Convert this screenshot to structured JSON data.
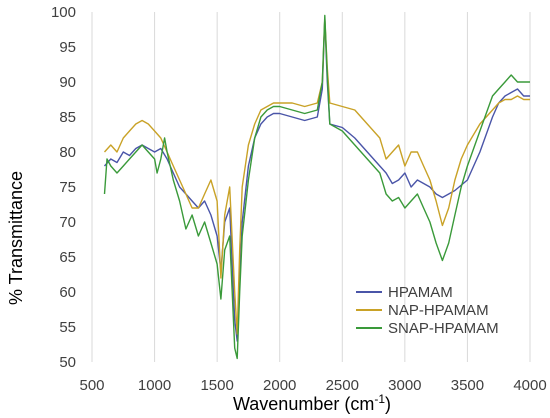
{
  "chart_data": {
    "type": "line",
    "xlabel": "Wavenumber (cm",
    "xlabel_sup": "-1",
    "xlabel_end": ")",
    "ylabel": "% Transmittance",
    "xlim": [
      500,
      4000
    ],
    "ylim": [
      50,
      100
    ],
    "x_ticks": [
      "500",
      "1000",
      "1500",
      "2000",
      "2500",
      "3000",
      "3500",
      "4000"
    ],
    "y_ticks": [
      "50",
      "55",
      "60",
      "65",
      "70",
      "75",
      "80",
      "85",
      "90",
      "95",
      "100"
    ],
    "grid": "vertical",
    "legend_position": "bottom-right",
    "series": [
      {
        "name": "HPAMAM",
        "color": "#4a55a8",
        "points": [
          [
            600,
            78
          ],
          [
            650,
            79
          ],
          [
            700,
            78.5
          ],
          [
            750,
            80
          ],
          [
            800,
            79.5
          ],
          [
            850,
            80.5
          ],
          [
            900,
            81
          ],
          [
            950,
            80.5
          ],
          [
            1000,
            80
          ],
          [
            1050,
            80.5
          ],
          [
            1100,
            79
          ],
          [
            1150,
            77
          ],
          [
            1200,
            75
          ],
          [
            1250,
            74
          ],
          [
            1300,
            73
          ],
          [
            1350,
            72
          ],
          [
            1400,
            73
          ],
          [
            1450,
            71
          ],
          [
            1500,
            68
          ],
          [
            1530,
            63
          ],
          [
            1560,
            70
          ],
          [
            1600,
            72
          ],
          [
            1640,
            56
          ],
          [
            1660,
            53
          ],
          [
            1680,
            62
          ],
          [
            1700,
            70
          ],
          [
            1750,
            78
          ],
          [
            1800,
            82
          ],
          [
            1850,
            84
          ],
          [
            1900,
            85
          ],
          [
            1950,
            85.5
          ],
          [
            2000,
            85.5
          ],
          [
            2100,
            85
          ],
          [
            2200,
            84.5
          ],
          [
            2300,
            85
          ],
          [
            2340,
            89
          ],
          [
            2360,
            99
          ],
          [
            2380,
            90
          ],
          [
            2400,
            84
          ],
          [
            2500,
            83.5
          ],
          [
            2600,
            82
          ],
          [
            2700,
            80
          ],
          [
            2800,
            78
          ],
          [
            2850,
            77
          ],
          [
            2900,
            75.5
          ],
          [
            2950,
            76
          ],
          [
            3000,
            77
          ],
          [
            3050,
            75
          ],
          [
            3100,
            76
          ],
          [
            3200,
            75
          ],
          [
            3250,
            74
          ],
          [
            3300,
            73.5
          ],
          [
            3350,
            74
          ],
          [
            3400,
            74.5
          ],
          [
            3500,
            76
          ],
          [
            3600,
            80
          ],
          [
            3700,
            85
          ],
          [
            3750,
            87
          ],
          [
            3800,
            88
          ],
          [
            3850,
            88.5
          ],
          [
            3900,
            89
          ],
          [
            3950,
            88
          ],
          [
            4000,
            88
          ]
        ]
      },
      {
        "name": "NAP-HPAMAM",
        "color": "#c9a227",
        "points": [
          [
            600,
            80
          ],
          [
            650,
            81
          ],
          [
            700,
            80
          ],
          [
            750,
            82
          ],
          [
            800,
            83
          ],
          [
            850,
            84
          ],
          [
            900,
            84.5
          ],
          [
            950,
            84
          ],
          [
            1000,
            83
          ],
          [
            1050,
            82
          ],
          [
            1100,
            80
          ],
          [
            1150,
            78
          ],
          [
            1200,
            76
          ],
          [
            1250,
            74
          ],
          [
            1300,
            72
          ],
          [
            1350,
            72
          ],
          [
            1400,
            74
          ],
          [
            1450,
            76
          ],
          [
            1500,
            73
          ],
          [
            1530,
            62
          ],
          [
            1560,
            71
          ],
          [
            1600,
            75
          ],
          [
            1640,
            60
          ],
          [
            1660,
            54
          ],
          [
            1680,
            66
          ],
          [
            1700,
            75
          ],
          [
            1750,
            81
          ],
          [
            1800,
            84
          ],
          [
            1850,
            86
          ],
          [
            1900,
            86.5
          ],
          [
            1950,
            87
          ],
          [
            2000,
            87
          ],
          [
            2100,
            87
          ],
          [
            2200,
            86.5
          ],
          [
            2300,
            87
          ],
          [
            2340,
            90
          ],
          [
            2360,
            99
          ],
          [
            2380,
            92
          ],
          [
            2400,
            87
          ],
          [
            2500,
            86.5
          ],
          [
            2600,
            86
          ],
          [
            2700,
            84
          ],
          [
            2800,
            82
          ],
          [
            2850,
            79
          ],
          [
            2900,
            80
          ],
          [
            2950,
            81
          ],
          [
            3000,
            78
          ],
          [
            3050,
            80
          ],
          [
            3100,
            80
          ],
          [
            3150,
            78
          ],
          [
            3200,
            76
          ],
          [
            3250,
            73
          ],
          [
            3300,
            69.5
          ],
          [
            3350,
            72
          ],
          [
            3400,
            76
          ],
          [
            3450,
            79
          ],
          [
            3500,
            81
          ],
          [
            3600,
            84
          ],
          [
            3700,
            86
          ],
          [
            3750,
            87
          ],
          [
            3800,
            87.5
          ],
          [
            3850,
            87.5
          ],
          [
            3900,
            88
          ],
          [
            3950,
            87.5
          ],
          [
            4000,
            87.5
          ]
        ]
      },
      {
        "name": "SNAP-HPAMAM",
        "color": "#3a9a3a",
        "points": [
          [
            600,
            74
          ],
          [
            620,
            79
          ],
          [
            650,
            78
          ],
          [
            700,
            77
          ],
          [
            750,
            78
          ],
          [
            800,
            79
          ],
          [
            850,
            80
          ],
          [
            900,
            81
          ],
          [
            950,
            80
          ],
          [
            1000,
            79
          ],
          [
            1020,
            77
          ],
          [
            1050,
            79
          ],
          [
            1080,
            82
          ],
          [
            1100,
            80
          ],
          [
            1150,
            76
          ],
          [
            1200,
            73
          ],
          [
            1250,
            69
          ],
          [
            1300,
            71
          ],
          [
            1350,
            68
          ],
          [
            1400,
            70
          ],
          [
            1450,
            67
          ],
          [
            1500,
            64
          ],
          [
            1530,
            59
          ],
          [
            1560,
            66
          ],
          [
            1600,
            68
          ],
          [
            1640,
            52
          ],
          [
            1660,
            50.5
          ],
          [
            1680,
            60
          ],
          [
            1700,
            68
          ],
          [
            1750,
            76
          ],
          [
            1800,
            82
          ],
          [
            1850,
            85
          ],
          [
            1900,
            86
          ],
          [
            1950,
            86.5
          ],
          [
            2000,
            86.5
          ],
          [
            2100,
            86
          ],
          [
            2200,
            85.5
          ],
          [
            2300,
            86
          ],
          [
            2340,
            90
          ],
          [
            2360,
            99.5
          ],
          [
            2380,
            91
          ],
          [
            2400,
            84
          ],
          [
            2500,
            83
          ],
          [
            2600,
            81
          ],
          [
            2700,
            79
          ],
          [
            2800,
            77
          ],
          [
            2850,
            74
          ],
          [
            2900,
            73
          ],
          [
            2950,
            73.5
          ],
          [
            3000,
            72
          ],
          [
            3050,
            73
          ],
          [
            3100,
            74
          ],
          [
            3150,
            72
          ],
          [
            3200,
            70
          ],
          [
            3250,
            67
          ],
          [
            3300,
            64.5
          ],
          [
            3350,
            67
          ],
          [
            3400,
            71
          ],
          [
            3450,
            75
          ],
          [
            3500,
            78
          ],
          [
            3600,
            83
          ],
          [
            3700,
            88
          ],
          [
            3750,
            89
          ],
          [
            3800,
            90
          ],
          [
            3850,
            91
          ],
          [
            3900,
            90
          ],
          [
            3950,
            90
          ],
          [
            4000,
            90
          ]
        ]
      }
    ]
  }
}
